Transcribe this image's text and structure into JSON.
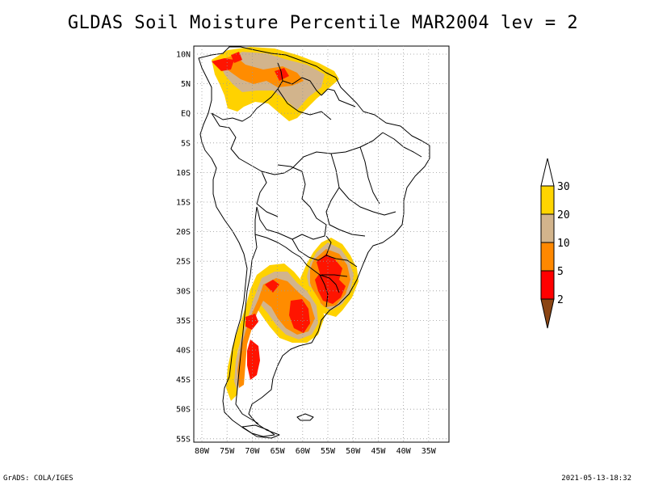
{
  "title": "GLDAS Soil Moisture Percentile MAR2004 lev = 2",
  "footer": {
    "left": "GrADS: COLA/IGES",
    "right": "2021-05-13-18:32"
  },
  "axes": {
    "lat_labels": [
      "10N",
      "5N",
      "EQ",
      "5S",
      "10S",
      "15S",
      "20S",
      "25S",
      "30S",
      "35S",
      "40S",
      "45S",
      "50S",
      "55S"
    ],
    "lon_labels": [
      "80W",
      "75W",
      "70W",
      "65W",
      "60W",
      "55W",
      "50W",
      "45W",
      "40W",
      "35W"
    ]
  },
  "legend": {
    "labels": [
      "30",
      "20",
      "10",
      "5",
      "2"
    ],
    "colors": {
      "above": "#ffffff",
      "l30": "#ffd500",
      "l20": "#d2b48c",
      "l10": "#ff8800",
      "l5": "#ff0000",
      "below": "#8b4513"
    }
  },
  "colors": {
    "yellow": "#ffd200",
    "tan": "#d2b48c",
    "orange": "#ff8c00",
    "red": "#ff1400"
  }
}
